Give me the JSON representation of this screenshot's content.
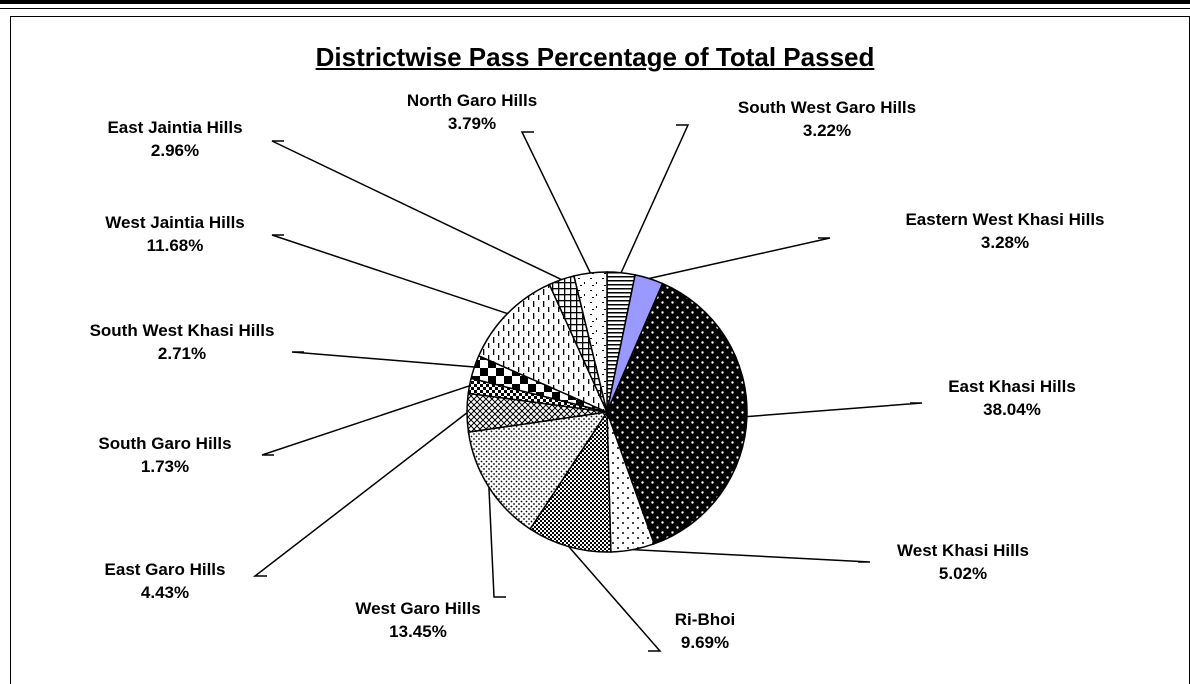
{
  "chart_data": {
    "type": "pie",
    "title": "Districtwise Pass Percentage of Total Passed",
    "slices": [
      {
        "name": "South West Garo Hills",
        "label": "3.22%",
        "value": 3.22
      },
      {
        "name": "Eastern West Khasi Hills",
        "label": "3.28%",
        "value": 3.28,
        "color": "#9999ff"
      },
      {
        "name": "East Khasi Hills",
        "label": "38.04%",
        "value": 38.04
      },
      {
        "name": "West Khasi Hills",
        "label": "5.02%",
        "value": 5.02
      },
      {
        "name": "Ri-Bhoi",
        "label": "9.69%",
        "value": 9.69
      },
      {
        "name": "West Garo Hills",
        "label": "13.45%",
        "value": 13.45
      },
      {
        "name": "East Garo Hills",
        "label": "4.43%",
        "value": 4.43
      },
      {
        "name": "South Garo Hills",
        "label": "1.73%",
        "value": 1.73
      },
      {
        "name": "South West Khasi Hills",
        "label": "2.71%",
        "value": 2.71
      },
      {
        "name": "West Jaintia Hills",
        "label": "11.68%",
        "value": 11.68
      },
      {
        "name": "East Jaintia Hills",
        "label": "2.96%",
        "value": 2.96
      },
      {
        "name": "North Garo Hills",
        "label": "3.79%",
        "value": 3.79
      }
    ],
    "legend": "none",
    "data_labels": "outside with leader lines"
  }
}
